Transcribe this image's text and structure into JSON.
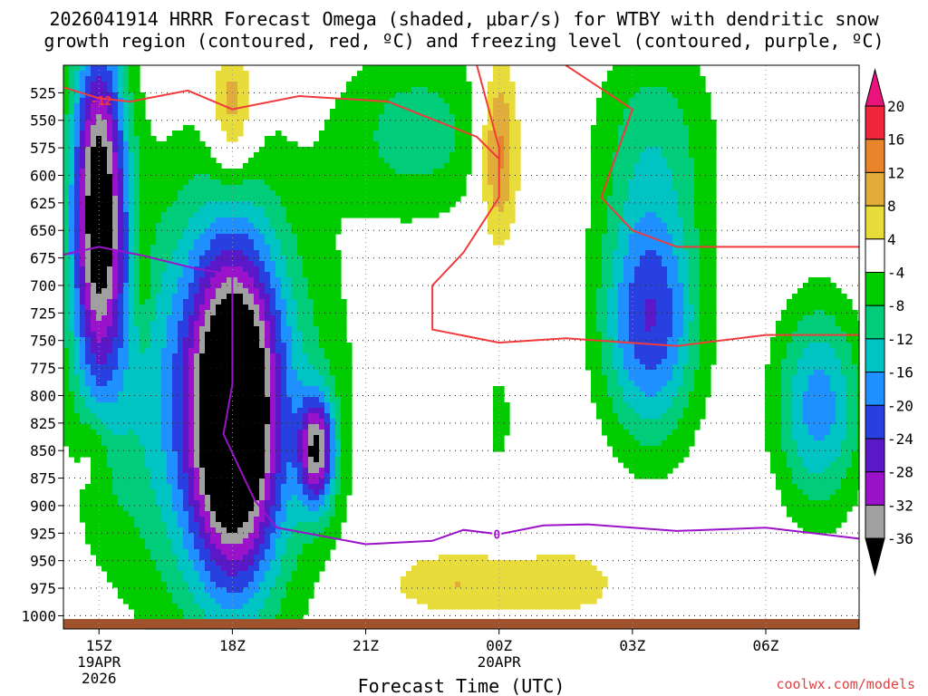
{
  "title": {
    "line1": "2026041914 HRRR Forecast Omega (shaded, μbar/s) for WTBY with dendritic snow",
    "line2": "growth region (contoured, red, ºC) and freezing level (contoured, purple, ºC)"
  },
  "credit": "coolwx.com/models",
  "colors": {
    "dgz_contour": "#ef3b3b",
    "freezing_contour": "#9a12c9",
    "ground": "#a0522d",
    "grid": "#222222"
  },
  "chart_data": {
    "type": "heatmap",
    "xlabel": "Forecast Time (UTC)",
    "ylabel": "",
    "x_range_hours": [
      -0.8,
      17.1
    ],
    "x_ticks": [
      {
        "hour": 0,
        "label": "15Z",
        "date": "19APR",
        "year": "2026"
      },
      {
        "hour": 3,
        "label": "18Z"
      },
      {
        "hour": 6,
        "label": "21Z"
      },
      {
        "hour": 9,
        "label": "00Z",
        "date": "20APR"
      },
      {
        "hour": 12,
        "label": "03Z"
      },
      {
        "hour": 15,
        "label": "06Z"
      }
    ],
    "y_range_hpa": [
      500,
      1012
    ],
    "y_ticks": [
      525,
      550,
      575,
      600,
      625,
      650,
      675,
      700,
      725,
      750,
      775,
      800,
      825,
      850,
      875,
      900,
      925,
      950,
      975,
      1000
    ],
    "colorbar": {
      "labels": [
        "20",
        "16",
        "12",
        "8",
        "4",
        "-4",
        "-8",
        "-12",
        "-16",
        "-20",
        "-24",
        "-28",
        "-32",
        "-36"
      ],
      "bins": [
        {
          "range": "16 to 20",
          "color": "#f0263c"
        },
        {
          "range": "12 to 16",
          "color": "#e8852a"
        },
        {
          "range": "8 to 12",
          "color": "#e2ac38"
        },
        {
          "range": "4 to 8",
          "color": "#e8dc3a"
        },
        {
          "range": "-4 to 4",
          "color": "#ffffff"
        },
        {
          "range": "-8 to -4",
          "color": "#00cc00"
        },
        {
          "range": "-12 to -8",
          "color": "#00cc7a"
        },
        {
          "range": "-16 to -12",
          "color": "#00c4c4"
        },
        {
          "range": "-20 to -16",
          "color": "#1e90ff"
        },
        {
          "range": "-24 to -20",
          "color": "#2840e0"
        },
        {
          "range": "-28 to -24",
          "color": "#5a18c8"
        },
        {
          "range": "-32 to -28",
          "color": "#9a12c9"
        },
        {
          "range": "-36 to -32",
          "color": "#a0a0a0"
        },
        {
          "range": "< -36",
          "color": "#000000"
        }
      ],
      "over_color": "#e8147c",
      "under_color": "#000000"
    },
    "omega_features": [
      {
        "hour": 0,
        "hpa": 628,
        "value": -40,
        "hw": 0.62,
        "hh": 160
      },
      {
        "hour": 3.05,
        "hpa": 820,
        "value": -40,
        "hw": 0.95,
        "hh": 145
      },
      {
        "hour": 4.9,
        "hpa": 850,
        "value": -30,
        "hw": 0.4,
        "hh": 50
      },
      {
        "hour": 2.6,
        "hpa": 800,
        "value": -18,
        "hw": 2.5,
        "hh": 200
      },
      {
        "hour": 12.4,
        "hpa": 730,
        "value": -24,
        "hw": 1.1,
        "hh": 110
      },
      {
        "hour": 16.2,
        "hpa": 810,
        "value": -18,
        "hw": 1.0,
        "hh": 95
      },
      {
        "hour": 7.2,
        "hpa": 560,
        "value": -10,
        "hw": 1.8,
        "hh": 80
      },
      {
        "hour": 12.5,
        "hpa": 560,
        "value": -9,
        "hw": 1.4,
        "hh": 95
      },
      {
        "hour": 3.0,
        "hpa": 540,
        "value": 13,
        "hw": 0.5,
        "hh": 60
      },
      {
        "hour": 9.0,
        "hpa": 575,
        "value": 16,
        "hw": 0.45,
        "hh": 80
      },
      {
        "hour": 1.0,
        "hpa": 690,
        "value": 6,
        "hw": 0.2,
        "hh": 60
      },
      {
        "hour": 9.0,
        "hpa": 820,
        "value": -6,
        "hw": 0.3,
        "hh": 50
      },
      {
        "hour": 8.0,
        "hpa": 970,
        "value": 8,
        "hw": 1.6,
        "hh": 30
      },
      {
        "hour": 10.5,
        "hpa": 970,
        "value": 7,
        "hw": 1.2,
        "hh": 30
      },
      {
        "hour": -0.1,
        "hpa": 850,
        "value": 6,
        "hw": 0.4,
        "hh": 40
      }
    ],
    "dgz_contours": [
      {
        "label": "-12",
        "points": [
          [
            -0.8,
            520
          ],
          [
            0,
            530
          ],
          [
            0.7,
            533
          ],
          [
            2,
            523
          ],
          [
            3,
            540
          ],
          [
            4.5,
            528
          ],
          [
            6.5,
            533
          ],
          [
            8.5,
            565
          ],
          [
            9,
            585
          ]
        ]
      },
      {
        "label": "",
        "points": [
          [
            8.5,
            500
          ],
          [
            9,
            575
          ],
          [
            9,
            620
          ],
          [
            8.2,
            670
          ],
          [
            7.5,
            700
          ],
          [
            7.5,
            740
          ],
          [
            9,
            752
          ],
          [
            10.5,
            748
          ],
          [
            13,
            755
          ],
          [
            15,
            745
          ],
          [
            17.1,
            745
          ]
        ]
      },
      {
        "label": "",
        "points": [
          [
            10.5,
            500
          ],
          [
            12,
            540
          ],
          [
            11.3,
            620
          ],
          [
            12,
            650
          ],
          [
            13,
            665
          ],
          [
            15,
            665
          ],
          [
            17.1,
            665
          ]
        ]
      }
    ],
    "freezing_contours": [
      {
        "label": "0",
        "points": [
          [
            -0.8,
            672
          ],
          [
            0,
            665
          ],
          [
            1,
            673
          ],
          [
            2.2,
            685
          ],
          [
            3,
            690
          ],
          [
            3,
            790
          ],
          [
            2.8,
            835
          ],
          [
            3.5,
            895
          ],
          [
            4,
            920
          ],
          [
            6,
            935
          ],
          [
            7.5,
            932
          ],
          [
            8.2,
            922
          ],
          [
            9,
            926
          ],
          [
            10,
            918
          ],
          [
            11,
            917
          ],
          [
            12,
            920
          ],
          [
            13,
            923
          ],
          [
            15,
            920
          ],
          [
            17.1,
            930
          ]
        ]
      }
    ]
  }
}
